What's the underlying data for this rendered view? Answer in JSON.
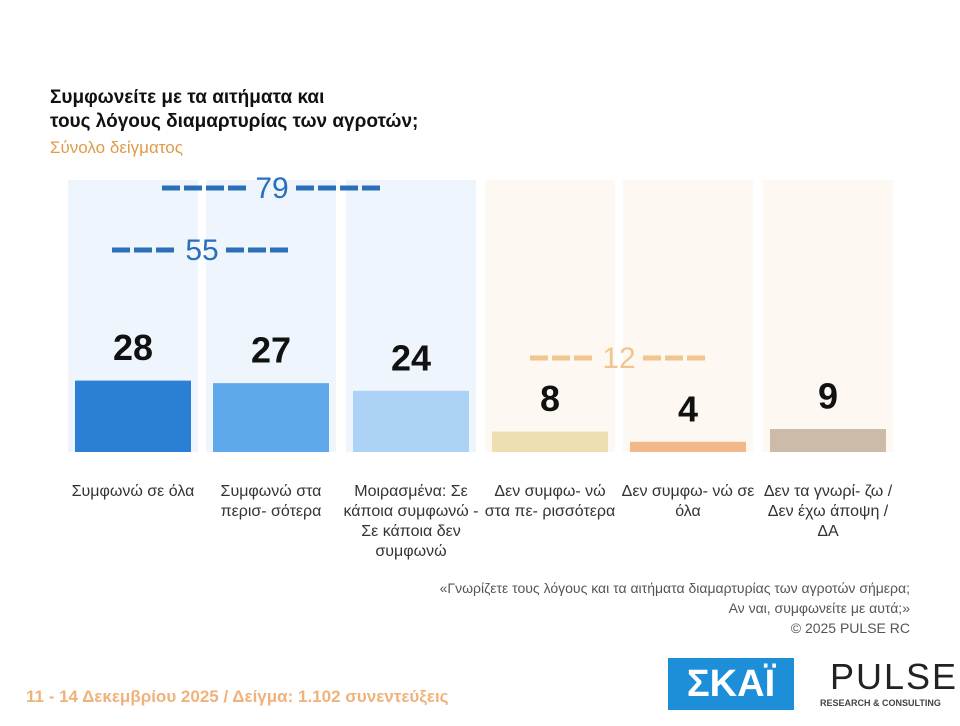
{
  "chart_data": {
    "type": "bar",
    "title": "Συμφωνείτε με τα αιτήματα και\nτους λόγους διαμαρτυρίας των αγροτών;",
    "subtitle": "Σύνολο δείγματος",
    "categories": [
      "Συμφωνώ\nσε όλα",
      "Συμφωνώ\nστα περισ-\nσότερα",
      "Μοιρασμένα: Σε\nκάποια συμφωνώ\n- Σε κάποια\nδεν συμφωνώ",
      "Δεν συμφω-\nνώ στα πε-\nρισσότερα",
      "Δεν συμφω-\nνώ σε όλα",
      "Δεν τα γνωρί-\nζω / Δεν έχω\nάποψη / ΔΑ"
    ],
    "values": [
      28,
      27,
      24,
      8,
      4,
      9
    ],
    "colors": [
      "#2b7fd4",
      "#5fa8ec",
      "#acd3f6",
      "#eedfb2",
      "#f3b887",
      "#cbbba8"
    ],
    "totals": [
      79,
      55,
      12
    ],
    "total_colors": [
      "#2a6fba",
      "#2a6fba",
      "#f2c58e"
    ],
    "notes": [
      "«Γνωρίζετε τους λόγους και τα αιτήματα διαμαρτυρίας των αγροτών σήμερα;",
      "Αν ναι, συμφωνείτε με αυτά;»",
      "©  2025  PULSE RC"
    ],
    "footer": "11 - 14 Δεκεμβρίου 2025  /  Δείγμα:  1.102 συνεντεύξεις",
    "logos": [
      "ΣΚΑΪ",
      "PULSE",
      "RESEARCH & CONSULTING"
    ]
  }
}
